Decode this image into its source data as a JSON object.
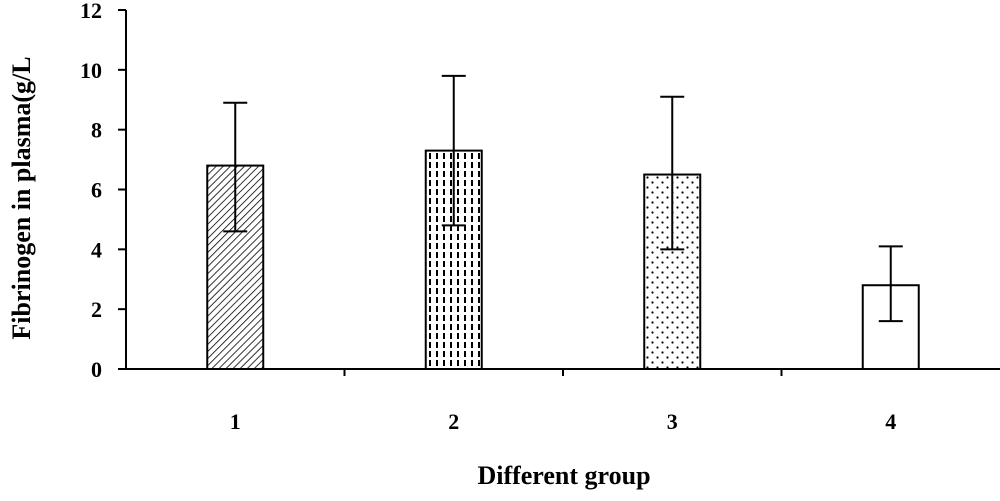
{
  "chart_data": {
    "type": "bar",
    "categories": [
      "1",
      "2",
      "3",
      "4"
    ],
    "values": [
      6.8,
      7.3,
      6.5,
      2.8
    ],
    "error_upper": [
      8.9,
      9.8,
      9.1,
      4.1
    ],
    "error_lower": [
      4.6,
      4.8,
      4.0,
      1.6
    ],
    "patterns": [
      "diagonal-hatch",
      "dashed-vertical",
      "dots",
      "none"
    ],
    "xlabel": "Different group",
    "ylabel": "Fibrinogen in plasma(g/L",
    "ylim": [
      0,
      12
    ],
    "yticks": [
      "0",
      "2",
      "4",
      "6",
      "8",
      "10",
      "12"
    ],
    "grid": false,
    "colors": {
      "bar_fill": "#ffffff",
      "stroke": "#000000"
    }
  }
}
